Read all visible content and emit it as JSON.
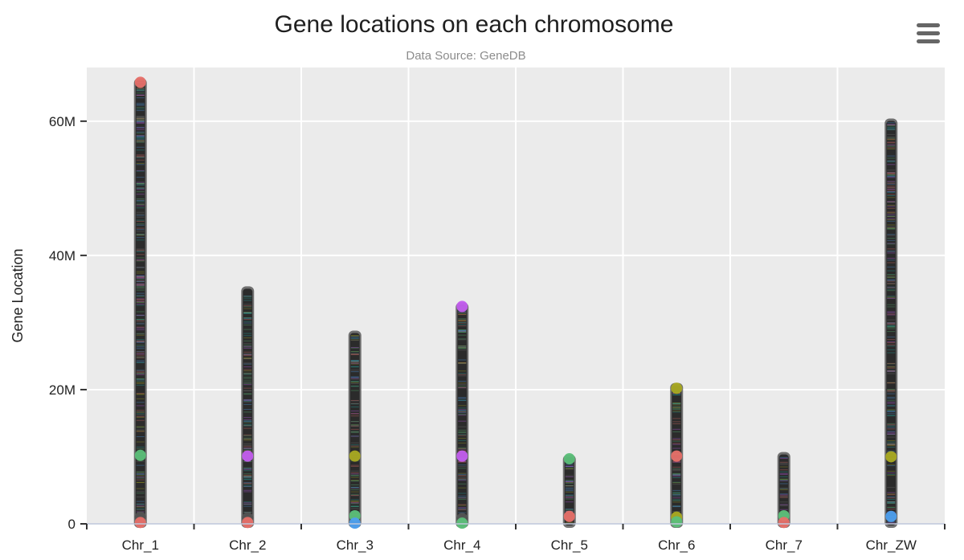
{
  "chart_data": {
    "type": "scatter",
    "title": "Gene locations on each chromosome",
    "subtitle": "Data Source: GeneDB",
    "ylabel": "Gene Location",
    "xlabel": "",
    "categories": [
      "Chr_1",
      "Chr_2",
      "Chr_3",
      "Chr_4",
      "Chr_5",
      "Chr_6",
      "Chr_7",
      "Chr_ZW"
    ],
    "ylim": [
      0,
      68000000
    ],
    "y_ticks": [
      {
        "value": 0,
        "label": "0"
      },
      {
        "value": 20000000,
        "label": "20M"
      },
      {
        "value": 40000000,
        "label": "40M"
      },
      {
        "value": 60000000,
        "label": "60M"
      }
    ],
    "grid": true,
    "legend": "none",
    "series": [
      {
        "category": "Chr_1",
        "min": 0,
        "max": 65800000,
        "highlights": [
          {
            "y": 65800000,
            "color": "#e8706a"
          },
          {
            "y": 10200000,
            "color": "#5cc07a"
          },
          {
            "y": 1000000,
            "color": "#555555"
          },
          {
            "y": 200000,
            "color": "#e8706a"
          }
        ]
      },
      {
        "category": "Chr_2",
        "min": 0,
        "max": 34800000,
        "highlights": [
          {
            "y": 10100000,
            "color": "#c45ef0"
          },
          {
            "y": 900000,
            "color": "#555555"
          },
          {
            "y": 200000,
            "color": "#e8706a"
          }
        ]
      },
      {
        "category": "Chr_3",
        "min": 0,
        "max": 28200000,
        "highlights": [
          {
            "y": 10100000,
            "color": "#aaaa22"
          },
          {
            "y": 1200000,
            "color": "#5cc07a"
          },
          {
            "y": 100000,
            "color": "#4ea0f0"
          }
        ]
      },
      {
        "category": "Chr_4",
        "min": 0,
        "max": 32400000,
        "highlights": [
          {
            "y": 32400000,
            "color": "#c45ef0"
          },
          {
            "y": 10100000,
            "color": "#c45ef0"
          },
          {
            "y": 800000,
            "color": "#555555"
          },
          {
            "y": 100000,
            "color": "#5cc07a"
          }
        ]
      },
      {
        "category": "Chr_5",
        "min": 0,
        "max": 9700000,
        "highlights": [
          {
            "y": 9700000,
            "color": "#5cc07a"
          },
          {
            "y": 1100000,
            "color": "#e8706a"
          }
        ]
      },
      {
        "category": "Chr_6",
        "min": 0,
        "max": 20400000,
        "highlights": [
          {
            "y": 20200000,
            "color": "#aaaa22"
          },
          {
            "y": 10100000,
            "color": "#e8706a"
          },
          {
            "y": 1000000,
            "color": "#aaaa22"
          },
          {
            "y": 300000,
            "color": "#5cc07a"
          }
        ]
      },
      {
        "category": "Chr_7",
        "min": 0,
        "max": 10100000,
        "highlights": [
          {
            "y": 1200000,
            "color": "#5cc07a"
          },
          {
            "y": 200000,
            "color": "#e8706a"
          }
        ]
      },
      {
        "category": "Chr_ZW",
        "min": 0,
        "max": 59800000,
        "highlights": [
          {
            "y": 10000000,
            "color": "#aaaa22"
          },
          {
            "y": 1100000,
            "color": "#4ea0f0"
          }
        ]
      }
    ]
  },
  "colors": {
    "plot_background": "#ebebeb",
    "gridline": "#ffffff",
    "point_base": "#2b2b2b",
    "jitter_palette": [
      "#e8706a",
      "#5cc07a",
      "#4ea0f0",
      "#c45ef0",
      "#aaaa22",
      "#20b2aa",
      "#777777"
    ]
  },
  "menu": {
    "icon": "hamburger-menu-icon"
  }
}
